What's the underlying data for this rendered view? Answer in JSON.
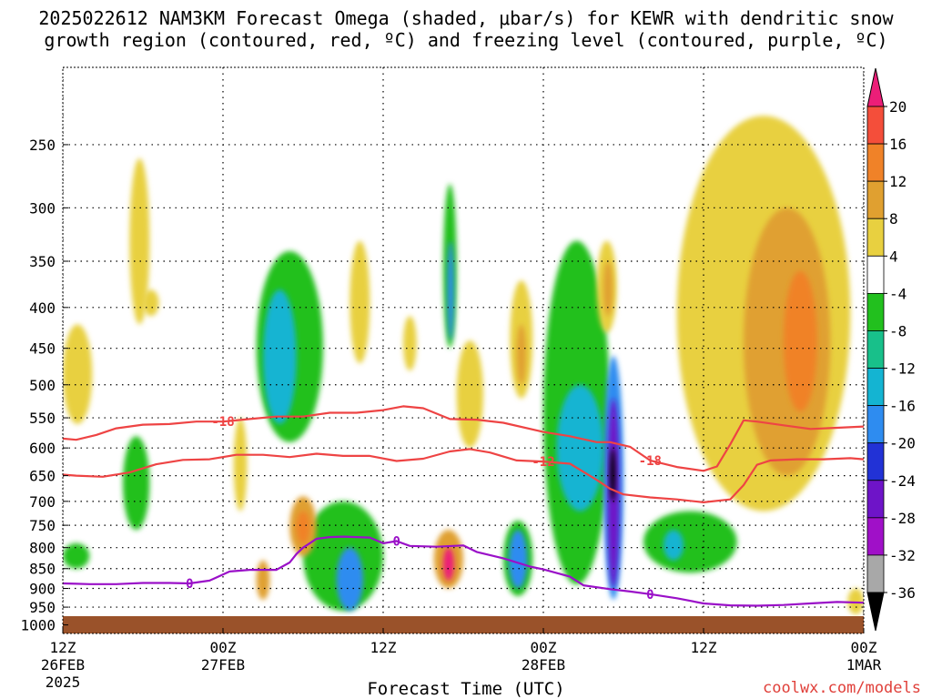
{
  "title_lines": [
    "2025022612 NAM3KM Forecast Omega (shaded, μbar/s) for KEWR with dendritic snow",
    "growth region (contoured, red, ºC) and freezing level (contoured, purple, ºC)"
  ],
  "credit": "coolwx.com/models",
  "colors": {
    "ground": "#9a522a",
    "isotherm_red": "#ee4444",
    "freezing_purple": "#9a10c8",
    "grid": "#000000"
  },
  "chart_data": {
    "type": "heatmap",
    "title": "2025022612 NAM3KM Forecast Omega (shaded, μbar/s) for KEWR with dendritic snow growth region (contoured, red, ºC) and freezing level (contoured, purple, ºC)",
    "xlabel": "Forecast Time (UTC)",
    "ylabel": "",
    "x_unit": "forecast hour",
    "xlim": [
      0,
      60
    ],
    "y_scale": "log-pressure",
    "ylim_hpa": [
      1025,
      200
    ],
    "y_ticks": [
      250,
      300,
      350,
      400,
      450,
      500,
      550,
      600,
      650,
      700,
      750,
      800,
      850,
      900,
      950,
      1000
    ],
    "x_ticks": [
      {
        "hour": 0,
        "lines": [
          "12Z",
          "26FEB",
          "2025"
        ]
      },
      {
        "hour": 12,
        "lines": [
          "00Z",
          "27FEB"
        ]
      },
      {
        "hour": 24,
        "lines": [
          "12Z"
        ]
      },
      {
        "hour": 36,
        "lines": [
          "00Z",
          "28FEB"
        ]
      },
      {
        "hour": 48,
        "lines": [
          "12Z"
        ]
      },
      {
        "hour": 60,
        "lines": [
          "00Z",
          "1MAR"
        ]
      }
    ],
    "grid": true,
    "colorbar": {
      "labels": [
        "20",
        "16",
        "12",
        "8",
        "4",
        "-4",
        "-8",
        "-12",
        "-16",
        "-20",
        "-24",
        "-28",
        "-32",
        "-36"
      ],
      "colors": [
        "#ec1e78",
        "#f44e3a",
        "#f08228",
        "#e0a030",
        "#e8d040",
        "#ffffff",
        "#22c01e",
        "#18c08a",
        "#14b4d2",
        "#2e8cf0",
        "#2232d6",
        "#6e14c8",
        "#a010c8",
        "#a8a8a8",
        "#000000"
      ]
    },
    "shaded_regions": [
      {
        "v": 4,
        "t": [
          0,
          2.2
        ],
        "p": [
          420,
          560
        ]
      },
      {
        "v": 4,
        "t": [
          5,
          6.5
        ],
        "p": [
          260,
          420
        ]
      },
      {
        "v": 4,
        "t": [
          6,
          7.2
        ],
        "p": [
          380,
          410
        ]
      },
      {
        "v": -4,
        "t": [
          0,
          2
        ],
        "p": [
          790,
          850
        ]
      },
      {
        "v": -4,
        "t": [
          4.5,
          6.5
        ],
        "p": [
          580,
          760
        ]
      },
      {
        "v": 4,
        "t": [
          12.8,
          13.8
        ],
        "p": [
          550,
          720
        ]
      },
      {
        "v": -4,
        "t": [
          14.5,
          19.5
        ],
        "p": [
          340,
          590
        ]
      },
      {
        "v": -12,
        "t": [
          15,
          17.5
        ],
        "p": [
          380,
          560
        ]
      },
      {
        "v": -4,
        "t": [
          18,
          24
        ],
        "p": [
          700,
          960
        ]
      },
      {
        "v": -16,
        "t": [
          20.5,
          22.5
        ],
        "p": [
          800,
          960
        ]
      },
      {
        "v": 8,
        "t": [
          17,
          19
        ],
        "p": [
          690,
          820
        ]
      },
      {
        "v": 12,
        "t": [
          17.5,
          18.5
        ],
        "p": [
          720,
          790
        ]
      },
      {
        "v": 8,
        "t": [
          14.5,
          15.5
        ],
        "p": [
          830,
          930
        ]
      },
      {
        "v": 4,
        "t": [
          21.5,
          23
        ],
        "p": [
          330,
          470
        ]
      },
      {
        "v": 4,
        "t": [
          25.5,
          26.5
        ],
        "p": [
          410,
          480
        ]
      },
      {
        "v": -4,
        "t": [
          28.5,
          29.5
        ],
        "p": [
          280,
          450
        ]
      },
      {
        "v": -16,
        "t": [
          28.8,
          29.3
        ],
        "p": [
          330,
          440
        ]
      },
      {
        "v": 4,
        "t": [
          29.5,
          31.5
        ],
        "p": [
          440,
          600
        ]
      },
      {
        "v": 4,
        "t": [
          33.5,
          35.2
        ],
        "p": [
          370,
          520
        ]
      },
      {
        "v": 8,
        "t": [
          34,
          34.7
        ],
        "p": [
          420,
          500
        ]
      },
      {
        "v": 8,
        "t": [
          27.8,
          30
        ],
        "p": [
          760,
          900
        ]
      },
      {
        "v": 20,
        "t": [
          28.5,
          29.3
        ],
        "p": [
          800,
          880
        ]
      },
      {
        "v": -4,
        "t": [
          33,
          35.2
        ],
        "p": [
          740,
          920
        ]
      },
      {
        "v": -16,
        "t": [
          33.4,
          34.8
        ],
        "p": [
          760,
          900
        ]
      },
      {
        "v": -4,
        "t": [
          36,
          41
        ],
        "p": [
          330,
          890
        ]
      },
      {
        "v": -12,
        "t": [
          37,
          40.5
        ],
        "p": [
          500,
          720
        ]
      },
      {
        "v": -16,
        "t": [
          40.5,
          42
        ],
        "p": [
          460,
          930
        ]
      },
      {
        "v": -24,
        "t": [
          40.8,
          41.7
        ],
        "p": [
          520,
          900
        ]
      },
      {
        "v": -36,
        "t": [
          41,
          41.4
        ],
        "p": [
          600,
          700
        ]
      },
      {
        "v": 4,
        "t": [
          40,
          41.5
        ],
        "p": [
          330,
          430
        ]
      },
      {
        "v": 8,
        "t": [
          40.5,
          41.2
        ],
        "p": [
          350,
          410
        ]
      },
      {
        "v": -4,
        "t": [
          43.5,
          50.5
        ],
        "p": [
          720,
          860
        ]
      },
      {
        "v": -12,
        "t": [
          45,
          46.5
        ],
        "p": [
          760,
          830
        ]
      },
      {
        "v": 4,
        "t": [
          46,
          59
        ],
        "p": [
          230,
          720
        ]
      },
      {
        "v": 8,
        "t": [
          51,
          57.5
        ],
        "p": [
          300,
          650
        ]
      },
      {
        "v": 12,
        "t": [
          54,
          56.5
        ],
        "p": [
          360,
          540
        ]
      },
      {
        "v": 4,
        "t": [
          58.8,
          60
        ],
        "p": [
          900,
          970
        ]
      }
    ],
    "series": [
      {
        "name": "-18",
        "color": "isotherm_red",
        "points": [
          [
            0,
            584
          ],
          [
            1,
            586
          ],
          [
            2.5,
            578
          ],
          [
            4,
            567
          ],
          [
            6,
            561
          ],
          [
            8,
            560
          ],
          [
            10,
            556
          ],
          [
            12,
            556
          ],
          [
            14,
            552
          ],
          [
            16,
            548
          ],
          [
            18,
            548
          ],
          [
            20,
            542
          ],
          [
            22,
            542
          ],
          [
            24,
            538
          ],
          [
            25.5,
            532
          ],
          [
            27,
            535
          ],
          [
            29,
            552
          ],
          [
            31,
            553
          ],
          [
            33,
            558
          ],
          [
            36,
            573
          ],
          [
            38,
            580
          ],
          [
            40,
            590
          ],
          [
            41,
            590
          ],
          [
            42.5,
            598
          ],
          [
            44,
            622
          ],
          [
            46,
            634
          ],
          [
            48,
            641
          ],
          [
            49,
            633
          ],
          [
            50,
            594
          ],
          [
            51,
            554
          ],
          [
            52,
            556
          ],
          [
            54,
            562
          ],
          [
            56,
            568
          ],
          [
            58,
            566
          ],
          [
            60,
            564
          ]
        ]
      },
      {
        "name": "-12",
        "color": "isotherm_red",
        "points": [
          [
            0,
            648
          ],
          [
            1,
            650
          ],
          [
            3,
            652
          ],
          [
            5,
            644
          ],
          [
            7,
            629
          ],
          [
            9,
            621
          ],
          [
            11,
            620
          ],
          [
            13,
            612
          ],
          [
            15,
            612
          ],
          [
            17,
            616
          ],
          [
            19,
            610
          ],
          [
            21,
            614
          ],
          [
            23,
            614
          ],
          [
            25,
            623
          ],
          [
            27,
            619
          ],
          [
            29,
            606
          ],
          [
            30.5,
            602
          ],
          [
            32,
            608
          ],
          [
            34,
            622
          ],
          [
            36,
            624
          ],
          [
            38,
            628
          ],
          [
            40,
            658
          ],
          [
            41,
            675
          ],
          [
            42,
            686
          ],
          [
            44,
            692
          ],
          [
            46,
            696
          ],
          [
            48,
            702
          ],
          [
            50,
            696
          ],
          [
            51,
            668
          ],
          [
            52,
            630
          ],
          [
            53,
            622
          ],
          [
            55,
            620
          ],
          [
            57,
            620
          ],
          [
            59,
            618
          ],
          [
            60,
            620
          ]
        ]
      },
      {
        "name": "0",
        "color": "freezing_purple",
        "points": [
          [
            0,
            887
          ],
          [
            1,
            888
          ],
          [
            2,
            889
          ],
          [
            4,
            889
          ],
          [
            6,
            886
          ],
          [
            8,
            886
          ],
          [
            9.5,
            887
          ],
          [
            11,
            880
          ],
          [
            12.5,
            857
          ],
          [
            14,
            853
          ],
          [
            16,
            853
          ],
          [
            17,
            835
          ],
          [
            17.5,
            815
          ],
          [
            18,
            800
          ],
          [
            18.5,
            790
          ],
          [
            19,
            780
          ],
          [
            20,
            776
          ],
          [
            21,
            775
          ],
          [
            23,
            777
          ],
          [
            24,
            790
          ],
          [
            25,
            785
          ],
          [
            26,
            796
          ],
          [
            28,
            798
          ],
          [
            30,
            795
          ],
          [
            31,
            810
          ],
          [
            33,
            825
          ],
          [
            34.5,
            840
          ],
          [
            35,
            845
          ],
          [
            36,
            852
          ],
          [
            38,
            870
          ],
          [
            39,
            892
          ],
          [
            41,
            902
          ],
          [
            42.5,
            908
          ],
          [
            44,
            915
          ],
          [
            46,
            926
          ],
          [
            48,
            940
          ],
          [
            50,
            945
          ],
          [
            52,
            946
          ],
          [
            54,
            944
          ],
          [
            56,
            940
          ],
          [
            58,
            936
          ],
          [
            60,
            938
          ]
        ]
      }
    ]
  },
  "x_axis_label": "Forecast Time (UTC)"
}
